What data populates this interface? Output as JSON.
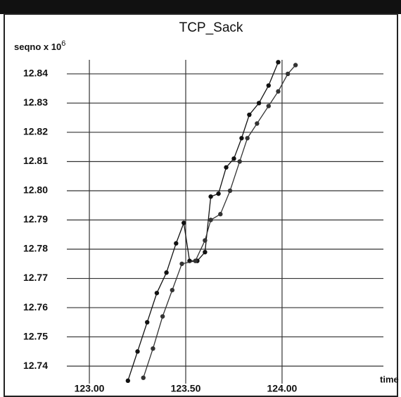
{
  "chart_data": {
    "type": "line",
    "title": "TCP_Sack",
    "y_label": "seqno x 10",
    "y_label_exponent": "6",
    "x_label": "time",
    "xlim": [
      122.883,
      124.526
    ],
    "ylim": [
      12.734,
      12.8448
    ],
    "xticks": [
      {
        "value": 123,
        "label": "123.00"
      },
      {
        "value": 123.5,
        "label": "123.50"
      },
      {
        "value": 124,
        "label": "124.00"
      }
    ],
    "yticks": [
      12.74,
      12.75,
      12.76,
      12.77,
      12.78,
      12.79,
      {
        "value": 12.8,
        "label": "12.80"
      },
      12.81,
      12.82,
      12.83,
      12.84
    ],
    "grid": true,
    "series": [
      {
        "color": "#111111",
        "x": [
          123.2,
          123.25,
          123.3,
          123.35,
          123.4,
          123.45,
          123.49,
          123.52,
          123.56,
          123.6,
          123.63,
          123.67,
          123.71,
          123.75,
          123.79,
          123.83,
          123.88,
          123.93,
          123.98
        ],
        "values": [
          12.735,
          12.745,
          12.755,
          12.765,
          12.772,
          12.782,
          12.789,
          12.776,
          12.776,
          12.779,
          12.798,
          12.799,
          12.808,
          12.811,
          12.818,
          12.826,
          12.83,
          12.836,
          12.844
        ]
      },
      {
        "color": "#333333",
        "x": [
          123.28,
          123.33,
          123.38,
          123.43,
          123.48,
          123.55,
          123.6,
          123.63,
          123.68,
          123.73,
          123.78,
          123.82,
          123.87,
          123.93,
          123.98,
          124.03,
          124.07
        ],
        "values": [
          12.736,
          12.746,
          12.757,
          12.766,
          12.775,
          12.776,
          12.783,
          12.79,
          12.792,
          12.8,
          12.81,
          12.818,
          12.823,
          12.829,
          12.834,
          12.84,
          12.843
        ]
      }
    ]
  }
}
